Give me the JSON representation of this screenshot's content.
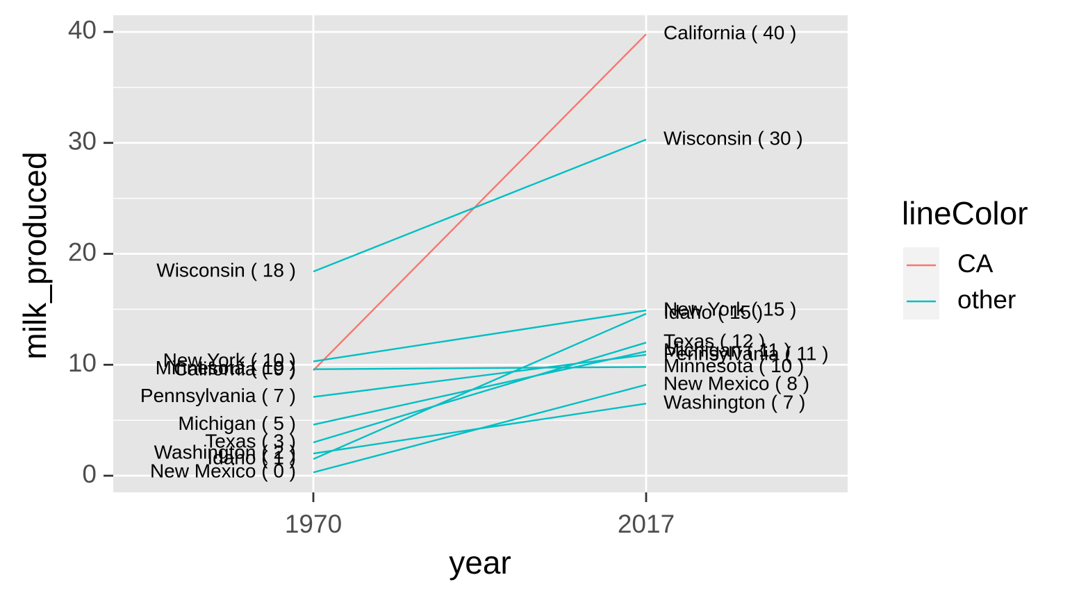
{
  "chart_data": {
    "type": "line",
    "subtype": "slope",
    "x": [
      "1970",
      "2017"
    ],
    "xlabel": "year",
    "ylabel": "milk_produced",
    "ylim": [
      -1.5,
      41.5
    ],
    "yticks": [
      0,
      10,
      20,
      30,
      40
    ],
    "grid": true,
    "background": "#e5e5e5",
    "legend": {
      "title": "lineColor",
      "position": "right",
      "entries": [
        {
          "name": "CA",
          "color": "#F8766D"
        },
        {
          "name": "other",
          "color": "#00BFC4"
        }
      ]
    },
    "series": [
      {
        "state": "California",
        "group": "CA",
        "values": [
          9.5,
          39.8
        ],
        "labels": [
          "California  ( 9 )",
          "California  ( 40 )"
        ]
      },
      {
        "state": "Wisconsin",
        "group": "other",
        "values": [
          18.4,
          30.3
        ],
        "labels": [
          "Wisconsin  ( 18 )",
          "Wisconsin  ( 30 )"
        ]
      },
      {
        "state": "New York",
        "group": "other",
        "values": [
          10.3,
          14.9
        ],
        "labels": [
          "New York  ( 10 )",
          "New York  ( 15 )"
        ]
      },
      {
        "state": "Idaho",
        "group": "other",
        "values": [
          1.5,
          14.6
        ],
        "labels": [
          "Idaho  ( 1 )",
          "Idaho  ( 15 )"
        ]
      },
      {
        "state": "Texas",
        "group": "other",
        "values": [
          3.0,
          12.0
        ],
        "labels": [
          "Texas  ( 3 )",
          "Texas  ( 12 )"
        ]
      },
      {
        "state": "Michigan",
        "group": "other",
        "values": [
          4.6,
          11.2
        ],
        "labels": [
          "Michigan  ( 5 )",
          "Michigan  ( 11 )"
        ]
      },
      {
        "state": "Pennsylvania",
        "group": "other",
        "values": [
          7.1,
          10.9
        ],
        "labels": [
          "Pennsylvania  ( 7 )",
          "Pennsylvania  ( 11 )"
        ]
      },
      {
        "state": "Minnesota",
        "group": "other",
        "values": [
          9.6,
          9.8
        ],
        "labels": [
          "Minnesota  ( 10 )",
          "Minnesota  ( 10 )"
        ]
      },
      {
        "state": "New Mexico",
        "group": "other",
        "values": [
          0.3,
          8.2
        ],
        "labels": [
          "New Mexico  ( 0 )",
          "New Mexico  ( 8 )"
        ]
      },
      {
        "state": "Washington",
        "group": "other",
        "values": [
          2.0,
          6.5
        ],
        "labels": [
          "Washington  ( 2 )",
          "Washington  ( 7 )"
        ]
      }
    ]
  }
}
